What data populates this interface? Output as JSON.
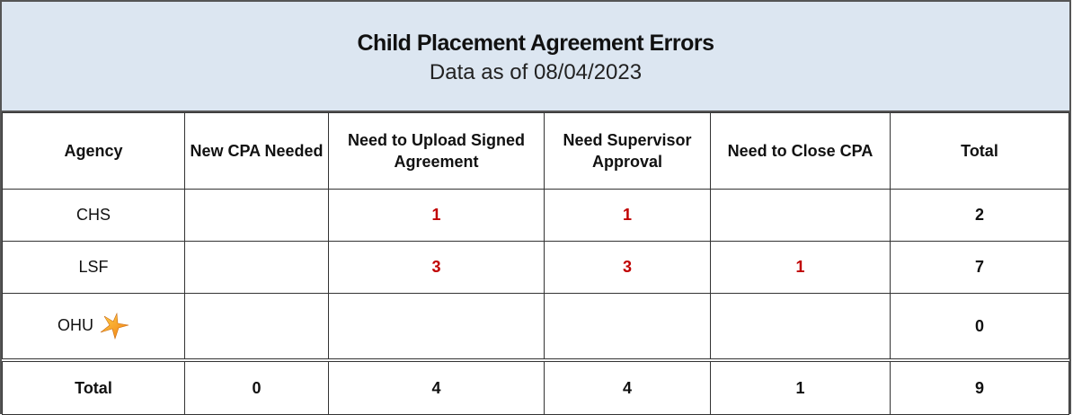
{
  "header": {
    "title": "Child Placement Agreement Errors",
    "subtitle": "Data as of 08/04/2023"
  },
  "table": {
    "columns": [
      "Agency",
      "New CPA Needed",
      "Need to Upload Signed Agreement",
      "Need Supervisor Approval",
      "Need to Close CPA",
      "Total"
    ],
    "rows": [
      [
        "CHS",
        null,
        1,
        1,
        null,
        2
      ],
      [
        "LSF",
        null,
        3,
        3,
        1,
        7
      ],
      [
        "OHU",
        null,
        null,
        null,
        null,
        0
      ]
    ],
    "total_row": [
      "Total",
      0,
      4,
      4,
      1,
      9
    ]
  }
}
